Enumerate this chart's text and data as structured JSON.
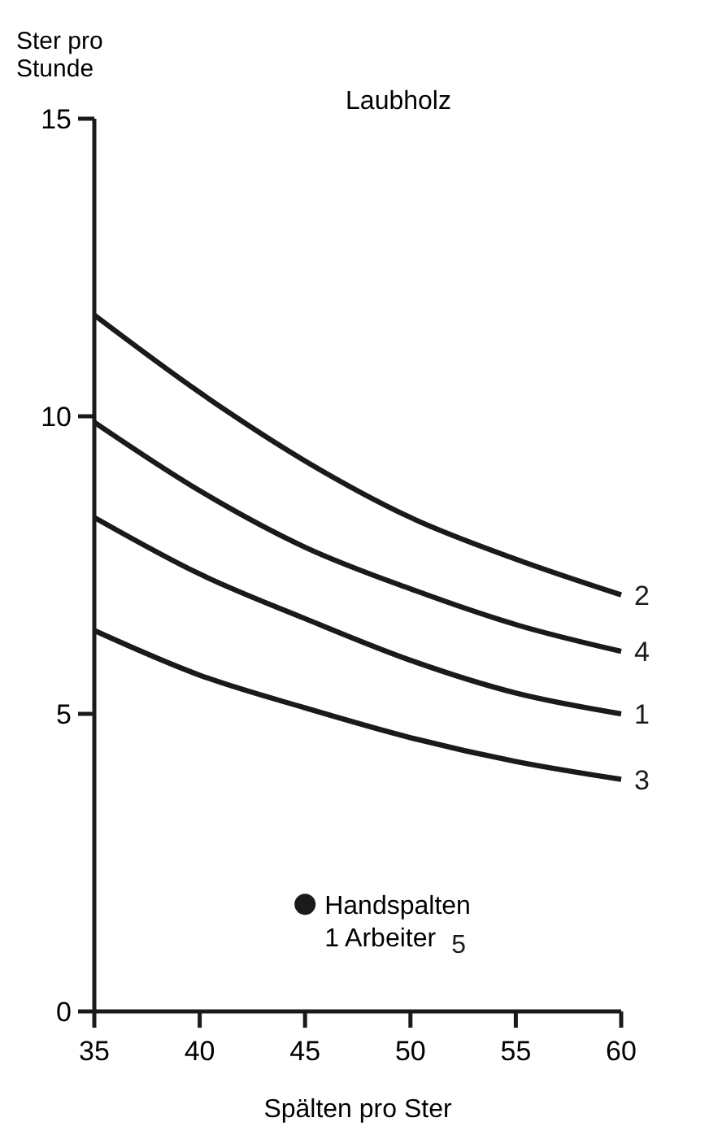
{
  "chart_data": {
    "type": "line",
    "title": "Laubholz",
    "xlabel": "Spälten pro Ster",
    "ylabel": "Ster pro Stunde",
    "x": [
      35,
      40,
      45,
      50,
      55,
      60
    ],
    "series": [
      {
        "name": "2",
        "color": "#1a1a1a",
        "values": [
          11.7,
          10.4,
          9.25,
          8.3,
          7.6,
          7.0
        ]
      },
      {
        "name": "4",
        "color": "#1a1a1a",
        "values": [
          9.9,
          8.75,
          7.8,
          7.1,
          6.5,
          6.05
        ]
      },
      {
        "name": "1",
        "color": "#1a1a1a",
        "values": [
          8.3,
          7.35,
          6.6,
          5.9,
          5.35,
          5.0
        ]
      },
      {
        "name": "3",
        "color": "#1a1a1a",
        "values": [
          6.4,
          5.65,
          5.1,
          4.6,
          4.2,
          3.9
        ]
      },
      {
        "name": "5",
        "type": "scatter",
        "marker": "circle",
        "color": "#1a1a1a",
        "x": [
          45
        ],
        "values": [
          1.8
        ]
      }
    ],
    "annotations": [
      {
        "text": "Handspalten",
        "x": 45,
        "y": 1.8
      },
      {
        "text": "1 Arbeiter",
        "x": 45,
        "y": 1.8
      }
    ],
    "xlim": [
      35,
      60
    ],
    "xticks": [
      35,
      40,
      45,
      50,
      55,
      60
    ],
    "ylim": [
      0,
      15
    ],
    "yticks": [
      0,
      5,
      10,
      15
    ],
    "grid": false,
    "line_style": "solid"
  }
}
